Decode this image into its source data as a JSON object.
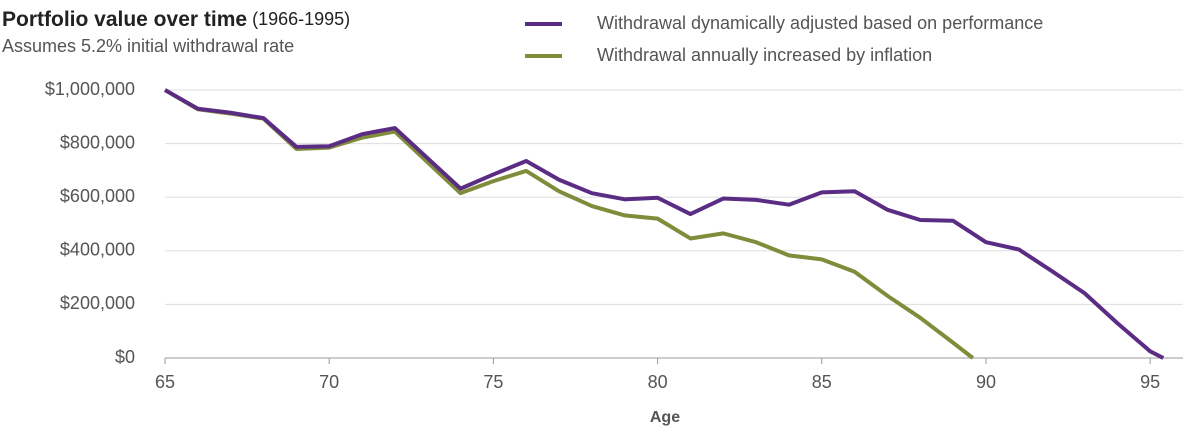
{
  "chart_data": {
    "type": "line",
    "title": "Portfolio value over time",
    "title_note": "(1966-1995)",
    "subtitle": "Assumes 5.2% initial withdrawal rate",
    "xlabel": "Age",
    "xlim": [
      65,
      96
    ],
    "xticks": [
      65,
      70,
      75,
      80,
      85,
      90,
      95
    ],
    "ylim": [
      0,
      1000000
    ],
    "yticks": [
      {
        "value": 0,
        "label": "$0"
      },
      {
        "value": 200000,
        "label": "$200,000"
      },
      {
        "value": 400000,
        "label": "$400,000"
      },
      {
        "value": 600000,
        "label": "$600,000"
      },
      {
        "value": 800000,
        "label": "$800,000"
      },
      {
        "value": 1000000,
        "label": "$1,000,000"
      }
    ],
    "grid": true,
    "series": [
      {
        "name": "Withdrawal dynamically adjusted based on performance",
        "color": "#5b2c83",
        "x": [
          65,
          66,
          67,
          68,
          69,
          70,
          71,
          72,
          74,
          75,
          76,
          77,
          78,
          79,
          80,
          81,
          82,
          83,
          84,
          85,
          86,
          87,
          88,
          89,
          90,
          91,
          92,
          93,
          94,
          95,
          95.4
        ],
        "values": [
          1000000,
          930000,
          915000,
          895000,
          788000,
          790000,
          835000,
          858000,
          632000,
          685000,
          735000,
          665000,
          615000,
          592000,
          598000,
          537000,
          595000,
          590000,
          572000,
          618000,
          622000,
          553000,
          515000,
          512000,
          432000,
          405000,
          325000,
          242000,
          130000,
          25000,
          0
        ]
      },
      {
        "name": "Withdrawal annually increased by inflation",
        "color": "#7f8c3a",
        "x": [
          65,
          66,
          67,
          68,
          69,
          70,
          71,
          72,
          74,
          75,
          76,
          77,
          78,
          79,
          80,
          81,
          82,
          83,
          84,
          85,
          86,
          87,
          88,
          89,
          89.6
        ],
        "values": [
          1000000,
          928000,
          912000,
          893000,
          780000,
          785000,
          822000,
          845000,
          615000,
          660000,
          698000,
          622000,
          567000,
          532000,
          520000,
          446000,
          465000,
          432000,
          383000,
          368000,
          322000,
          232000,
          150000,
          57000,
          0
        ]
      }
    ]
  }
}
